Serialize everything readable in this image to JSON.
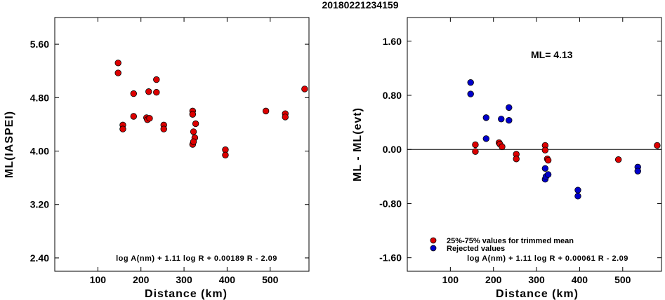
{
  "title": "20180221234159",
  "chart_data": [
    {
      "type": "scatter",
      "xlabel": "Distance (km)",
      "ylabel": "ML(IASPEI)",
      "xlim": [
        0,
        590
      ],
      "ylim": [
        2.2,
        6.0
      ],
      "xticks": [
        100,
        200,
        300,
        400,
        500
      ],
      "xtick_labels": [
        "100",
        "200",
        "300",
        "400",
        "500"
      ],
      "yticks": [
        2.4,
        3.2,
        4.0,
        4.8,
        5.6
      ],
      "ytick_labels": [
        "2.40",
        "3.20",
        "4.00",
        "4.80",
        "5.60"
      ],
      "formula": "log A(nm) + 1.11 log R + 0.00189 R - 2.09",
      "series": [
        {
          "color": "#dd0000",
          "points": [
            [
              147,
              5.32
            ],
            [
              147,
              5.17
            ],
            [
              158,
              4.39
            ],
            [
              158,
              4.33
            ],
            [
              183,
              4.86
            ],
            [
              183,
              4.52
            ],
            [
              213,
              4.5
            ],
            [
              215,
              4.47
            ],
            [
              218,
              4.89
            ],
            [
              236,
              4.88
            ],
            [
              236,
              5.07
            ],
            [
              220,
              4.49
            ],
            [
              253,
              4.39
            ],
            [
              253,
              4.33
            ],
            [
              320,
              4.6
            ],
            [
              320,
              4.55
            ],
            [
              322,
              4.29
            ],
            [
              325,
              4.2
            ],
            [
              327,
              4.41
            ],
            [
              320,
              4.1
            ],
            [
              322,
              4.14
            ],
            [
              396,
              4.02
            ],
            [
              396,
              3.94
            ],
            [
              490,
              4.6
            ],
            [
              535,
              4.56
            ],
            [
              535,
              4.51
            ],
            [
              580,
              4.93
            ]
          ]
        }
      ]
    },
    {
      "type": "scatter",
      "xlabel": "Distance (km)",
      "ylabel": "ML - ML(evt)",
      "xlim": [
        0,
        590
      ],
      "ylim": [
        -1.8,
        1.95
      ],
      "xticks": [
        100,
        200,
        300,
        400,
        500
      ],
      "xtick_labels": [
        "100",
        "200",
        "300",
        "400",
        "500"
      ],
      "yticks": [
        -1.6,
        -0.8,
        0.0,
        0.8,
        1.6
      ],
      "ytick_labels": [
        "-1.60",
        "-0.80",
        "0.00",
        "0.80",
        "1.60"
      ],
      "ml_text": "ML= 4.13",
      "formula": "log A(nm) + 1.11 log R + 0.00061 R - 2.09",
      "legend": [
        {
          "label": "25%-75% values for trimmed mean",
          "color": "#dd0000"
        },
        {
          "label": "Rejected values",
          "color": "#0000cc"
        }
      ],
      "series": [
        {
          "name": "25%-75% values for trimmed mean",
          "color": "#dd0000",
          "points": [
            [
              158,
              0.07
            ],
            [
              158,
              -0.03
            ],
            [
              213,
              0.1
            ],
            [
              215,
              0.08
            ],
            [
              220,
              0.04
            ],
            [
              253,
              -0.07
            ],
            [
              253,
              -0.14
            ],
            [
              320,
              0.06
            ],
            [
              320,
              -0.01
            ],
            [
              325,
              -0.14
            ],
            [
              327,
              -0.16
            ],
            [
              490,
              -0.15
            ],
            [
              580,
              0.06
            ]
          ]
        },
        {
          "name": "Rejected values",
          "color": "#0000cc",
          "points": [
            [
              147,
              0.99
            ],
            [
              147,
              0.82
            ],
            [
              183,
              0.47
            ],
            [
              183,
              0.16
            ],
            [
              218,
              0.45
            ],
            [
              236,
              0.62
            ],
            [
              236,
              0.43
            ],
            [
              320,
              -0.28
            ],
            [
              320,
              -0.44
            ],
            [
              322,
              -0.4
            ],
            [
              327,
              -0.37
            ],
            [
              396,
              -0.6
            ],
            [
              396,
              -0.69
            ],
            [
              535,
              -0.26
            ],
            [
              535,
              -0.32
            ]
          ]
        }
      ]
    }
  ]
}
